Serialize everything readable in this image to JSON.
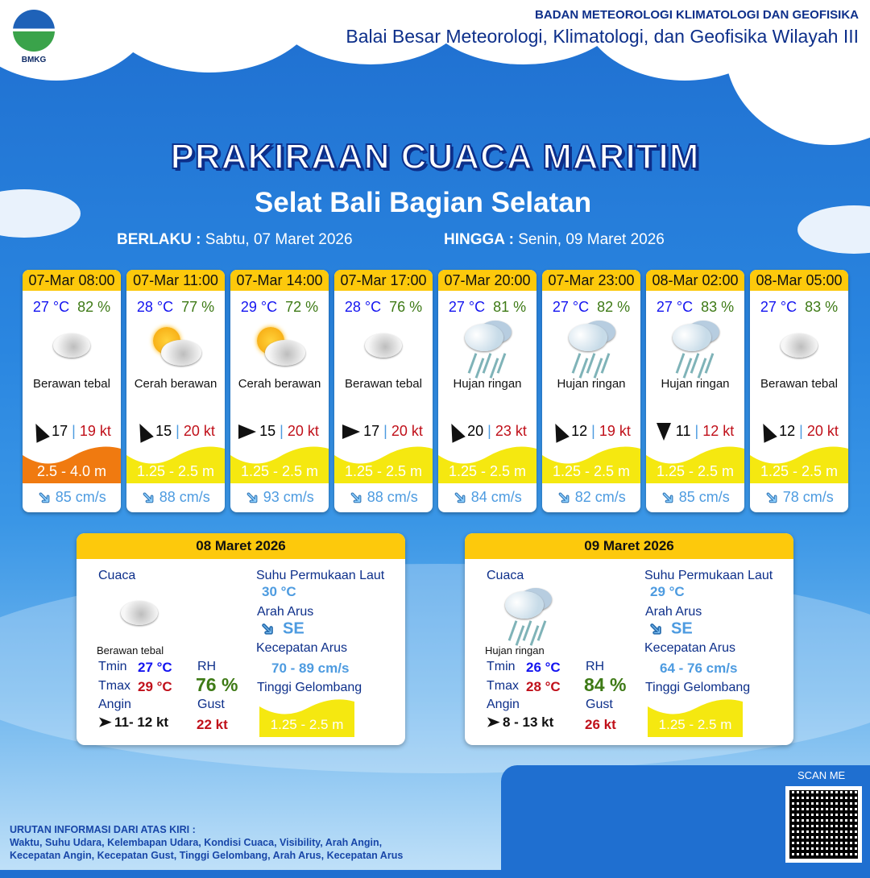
{
  "header": {
    "logo_text": "BMKG",
    "agency": "BADAN METEOROLOGI KLIMATOLOGI DAN GEOFISIKA",
    "office": "Balai Besar Meteorologi, Klimatologi, dan Geofisika Wilayah III"
  },
  "title": "PRAKIRAAN CUACA MARITIM",
  "area": "Selat Bali Bagian Selatan",
  "validity": {
    "from_label": "BERLAKU :",
    "from": "Sabtu, 07 Maret 2026",
    "to_label": "HINGGA :",
    "to": "Senin, 09 Maret 2026"
  },
  "colors": {
    "wave_moderate": "#f5e810",
    "wave_high": "#f07a10",
    "header_yellow": "#fdc90c"
  },
  "forecasts": [
    {
      "time": "07-Mar 08:00",
      "temp": "27 °C",
      "rh": "82 %",
      "icon": "cloudy-icon",
      "cond": "Berawan tebal",
      "wind_dir": "north-west",
      "wind": "17",
      "gust": "19 kt",
      "wave": "2.5 - 4.0 m",
      "wave_level": "high",
      "current": "85 cm/s"
    },
    {
      "time": "07-Mar 11:00",
      "temp": "28 °C",
      "rh": "77 %",
      "icon": "partly-cloudy-icon",
      "cond": "Cerah berawan",
      "wind_dir": "north-west",
      "wind": "15",
      "gust": "20 kt",
      "wave": "1.25 - 2.5 m",
      "wave_level": "moderate",
      "current": "88 cm/s"
    },
    {
      "time": "07-Mar 14:00",
      "temp": "29 °C",
      "rh": "72 %",
      "icon": "partly-cloudy-icon",
      "cond": "Cerah berawan",
      "wind_dir": "east",
      "wind": "15",
      "gust": "20 kt",
      "wave": "1.25 - 2.5 m",
      "wave_level": "moderate",
      "current": "93 cm/s"
    },
    {
      "time": "07-Mar 17:00",
      "temp": "28 °C",
      "rh": "76 %",
      "icon": "cloudy-icon",
      "cond": "Berawan tebal",
      "wind_dir": "east",
      "wind": "17",
      "gust": "20 kt",
      "wave": "1.25 - 2.5 m",
      "wave_level": "moderate",
      "current": "88 cm/s"
    },
    {
      "time": "07-Mar 20:00",
      "temp": "27 °C",
      "rh": "81 %",
      "icon": "light-rain-icon",
      "cond": "Hujan ringan",
      "wind_dir": "north-west",
      "wind": "20",
      "gust": "23 kt",
      "wave": "1.25 - 2.5 m",
      "wave_level": "moderate",
      "current": "84 cm/s"
    },
    {
      "time": "07-Mar 23:00",
      "temp": "27 °C",
      "rh": "82 %",
      "icon": "light-rain-icon",
      "cond": "Hujan ringan",
      "wind_dir": "north-west",
      "wind": "12",
      "gust": "19 kt",
      "wave": "1.25 - 2.5 m",
      "wave_level": "moderate",
      "current": "82 cm/s"
    },
    {
      "time": "08-Mar 02:00",
      "temp": "27 °C",
      "rh": "83 %",
      "icon": "light-rain-icon",
      "cond": "Hujan ringan",
      "wind_dir": "south",
      "wind": "11",
      "gust": "12 kt",
      "wave": "1.25 - 2.5 m",
      "wave_level": "moderate",
      "current": "85 cm/s"
    },
    {
      "time": "08-Mar 05:00",
      "temp": "27 °C",
      "rh": "83 %",
      "icon": "cloudy-icon",
      "cond": "Berawan tebal",
      "wind_dir": "north-west",
      "wind": "12",
      "gust": "20 kt",
      "wave": "1.25 - 2.5 m",
      "wave_level": "moderate",
      "current": "78 cm/s"
    }
  ],
  "labels": {
    "weather": "Cuaca",
    "tmin": "Tmin",
    "tmax": "Tmax",
    "wind": "Angin",
    "rh": "RH",
    "gust": "Gust",
    "sst": "Suhu Permukaan Laut",
    "cur_dir": "Arah Arus",
    "cur_speed": "Kecepatan Arus",
    "wave": "Tinggi Gelombang"
  },
  "daily": [
    {
      "date": "08 Maret 2026",
      "icon": "cloudy-icon",
      "cond": "Berawan tebal",
      "tmin": "27 °C",
      "tmax": "29 °C",
      "rh": "76 %",
      "wind": "11- 12 kt",
      "gust": "22 kt",
      "sst": "30 °C",
      "cur_dir": "SE",
      "cur_speed": "70  - 89 cm/s",
      "wave": "1.25 - 2.5 m"
    },
    {
      "date": "09 Maret 2026",
      "icon": "light-rain-icon",
      "cond": "Hujan ringan",
      "tmin": "26 °C",
      "tmax": "28 °C",
      "rh": "84 %",
      "wind": "8  - 13 kt",
      "gust": "26 kt",
      "sst": "29 °C",
      "cur_dir": "SE",
      "cur_speed": "64 - 76 cm/s",
      "wave": "1.25 - 2.5 m"
    }
  ],
  "footer": {
    "heading": "URUTAN INFORMASI DARI ATAS KIRI :",
    "line1": "Waktu, Suhu Udara, Kelembapan Udara, Kondisi Cuaca, Visibility, Arah Angin,",
    "line2": "Kecepatan Angin, Kecepatan Gust, Tinggi Gelombang, Arah Arus, Kecepatan Arus",
    "scan": "SCAN ME"
  }
}
